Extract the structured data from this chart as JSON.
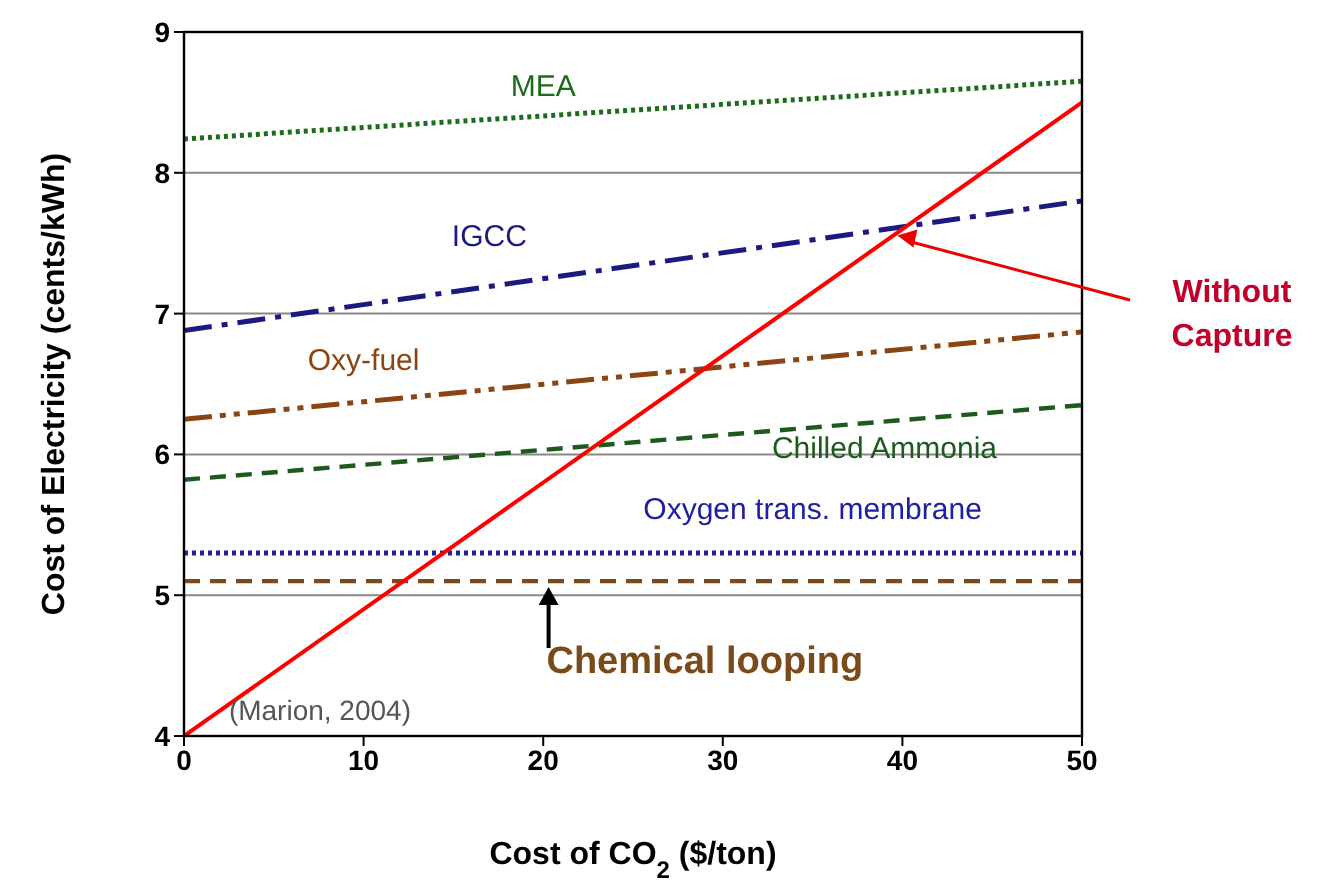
{
  "chart_data": {
    "type": "line",
    "xlabel": "Cost of CO$_{2}$  ($/ton)",
    "ylabel": "Cost of Electricity (cents/kWh)",
    "x": [
      0,
      50
    ],
    "xlim": [
      0,
      50
    ],
    "xticks": [
      0,
      10,
      20,
      30,
      40,
      50
    ],
    "ylim": [
      4,
      9
    ],
    "yticks": [
      4,
      5,
      6,
      7,
      8,
      9
    ],
    "grid": "y",
    "legend": false,
    "marker": "none",
    "series": [
      {
        "name": "MEA",
        "color": "#1e6b1e",
        "values": [
          8.24,
          8.65
        ],
        "line_style": "dotted"
      },
      {
        "name": "IGCC",
        "color": "#1a1a80",
        "values": [
          6.88,
          7.8
        ],
        "line_style": "dashdot"
      },
      {
        "name": "Oxy-fuel",
        "color": "#8b4513",
        "values": [
          6.25,
          6.87
        ],
        "line_style": "dashdotdot"
      },
      {
        "name": "Chilled Ammonia",
        "color": "#1e5a1e",
        "values": [
          5.82,
          6.35
        ],
        "line_style": "dashed"
      },
      {
        "name": "Oxygen trans. membrane",
        "color": "#2020a0",
        "values": [
          5.3,
          5.3
        ],
        "line_style": "dotted"
      },
      {
        "name": "Chemical looping",
        "color": "#7a4a1a",
        "values": [
          5.1,
          5.1
        ],
        "line_style": "dashed"
      },
      {
        "name": "Without Capture",
        "color": "#ff0000",
        "values": [
          4,
          8.5
        ],
        "line_style": "solid"
      }
    ],
    "annotations": [
      "(Marion, 2004)"
    ]
  }
}
